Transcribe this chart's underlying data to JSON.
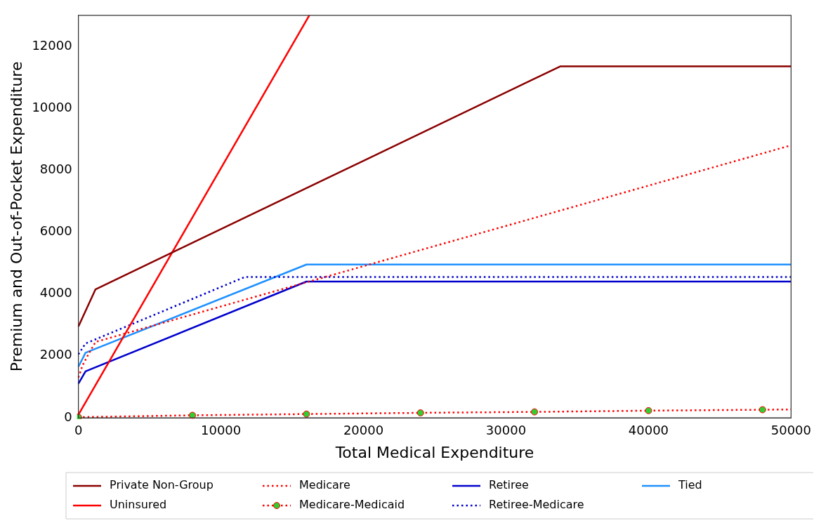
{
  "chart_data": {
    "type": "line",
    "xlabel": "Total Medical Expenditure",
    "ylabel": "Premium and Out-of-Pocket Expenditure",
    "xlim": [
      0,
      50000
    ],
    "xticks": [
      0,
      10000,
      20000,
      30000,
      40000,
      50000
    ],
    "ylim": [
      0,
      13000
    ],
    "yticks": [
      0,
      2000,
      4000,
      6000,
      8000,
      10000,
      12000
    ],
    "grid": false,
    "legend": "bottom",
    "marker": "none",
    "series": [
      {
        "name": "Private Non-Group",
        "color": "#8b0000",
        "line_style": "solid",
        "x": [
          0,
          1200,
          33800,
          50000
        ],
        "values": [
          2950,
          4150,
          11350,
          11350
        ]
      },
      {
        "name": "Uninsured",
        "color": "#ff0000",
        "line_style": "solid",
        "x": [
          0,
          16200
        ],
        "values": [
          100,
          13000
        ]
      },
      {
        "name": "Medicare",
        "color": "#ff0000",
        "line_style": "dotted",
        "x": [
          0,
          300,
          700,
          1200,
          50000
        ],
        "values": [
          1300,
          1700,
          2050,
          2450,
          8800
        ]
      },
      {
        "name": "Medicare-Medicaid",
        "color": "#ff0000",
        "line_style": "dotted",
        "marker": "circle",
        "x": [
          0,
          8000,
          16000,
          24000,
          32000,
          40000,
          48000,
          50000
        ],
        "values": [
          20,
          80,
          120,
          160,
          190,
          230,
          260,
          270
        ]
      },
      {
        "name": "Retiree",
        "color": "#0000cd",
        "line_style": "solid",
        "x": [
          0,
          500,
          16000,
          50000
        ],
        "values": [
          1100,
          1500,
          4400,
          4400
        ]
      },
      {
        "name": "Retiree-Medicare",
        "color": "#0000cd",
        "line_style": "dotted",
        "x": [
          0,
          500,
          11700,
          50000
        ],
        "values": [
          2050,
          2400,
          4550,
          4550
        ]
      },
      {
        "name": "Tied",
        "color": "#1e90ff",
        "line_style": "solid",
        "x": [
          0,
          500,
          16000,
          50000
        ],
        "values": [
          1650,
          2100,
          4950,
          4950
        ]
      }
    ]
  }
}
